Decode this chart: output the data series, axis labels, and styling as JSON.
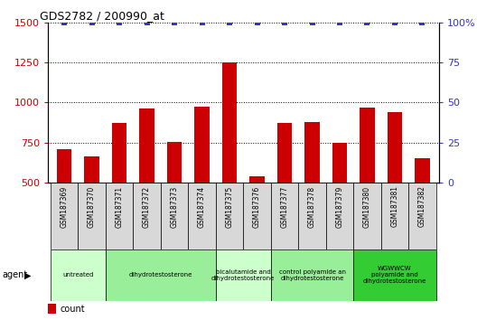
{
  "title": "GDS2782 / 200990_at",
  "samples": [
    "GSM187369",
    "GSM187370",
    "GSM187371",
    "GSM187372",
    "GSM187373",
    "GSM187374",
    "GSM187375",
    "GSM187376",
    "GSM187377",
    "GSM187378",
    "GSM187379",
    "GSM187380",
    "GSM187381",
    "GSM187382"
  ],
  "counts": [
    710,
    660,
    870,
    960,
    755,
    975,
    1250,
    540,
    870,
    880,
    750,
    970,
    940,
    650
  ],
  "ylim_left": [
    500,
    1500
  ],
  "ylim_right": [
    0,
    100
  ],
  "yticks_left": [
    500,
    750,
    1000,
    1250,
    1500
  ],
  "yticks_right": [
    0,
    25,
    50,
    75,
    100
  ],
  "bar_color": "#cc0000",
  "dot_color": "#3333cc",
  "groups": [
    {
      "label": "untreated",
      "span": [
        0,
        2
      ],
      "color": "#ccffcc"
    },
    {
      "label": "dihydrotestosterone",
      "span": [
        2,
        6
      ],
      "color": "#99ee99"
    },
    {
      "label": "bicalutamide and\ndihydrotestosterone",
      "span": [
        6,
        8
      ],
      "color": "#ccffcc"
    },
    {
      "label": "control polyamide an\ndihydrotestosterone",
      "span": [
        8,
        11
      ],
      "color": "#99ee99"
    },
    {
      "label": "WGWWCW\npolyamide and\ndihydrotestosterone",
      "span": [
        11,
        14
      ],
      "color": "#33cc33"
    }
  ],
  "sample_box_color": "#d8d8d8",
  "background_color": "#ffffff",
  "tick_color_left": "#cc0000",
  "tick_color_right": "#3333cc",
  "figsize": [
    5.28,
    3.54
  ],
  "dpi": 100
}
